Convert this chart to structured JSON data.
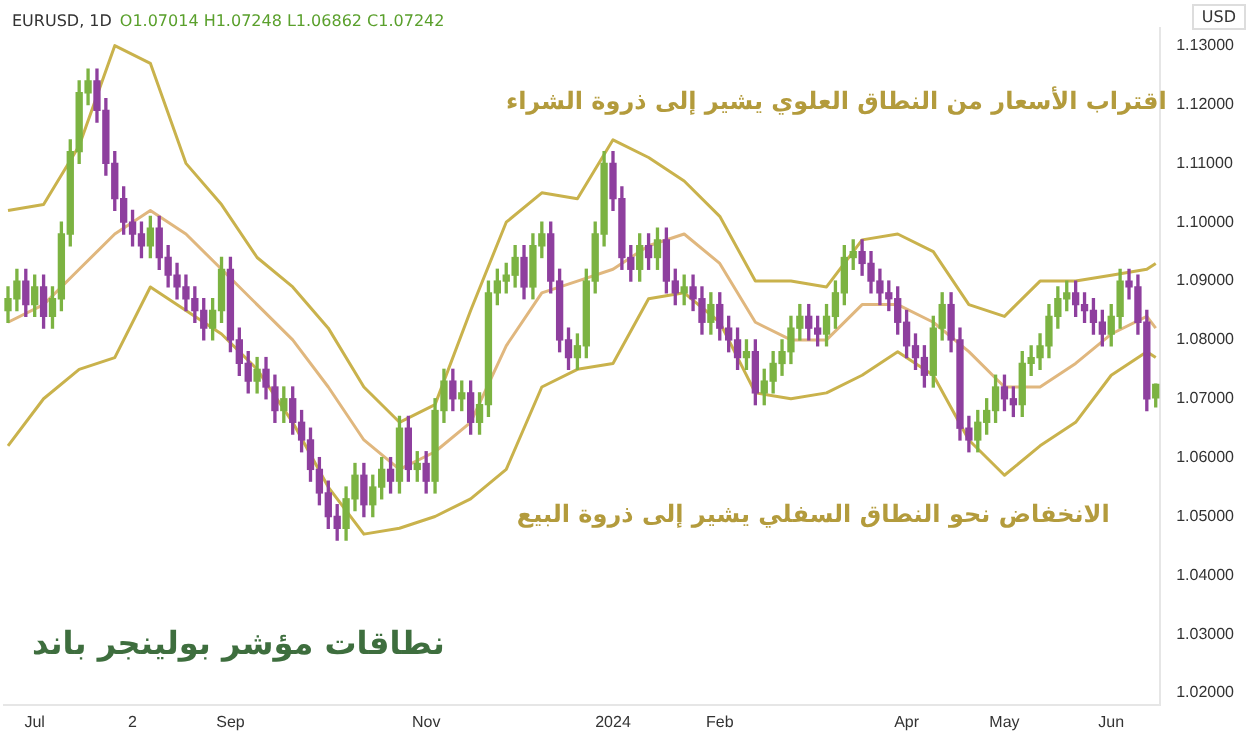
{
  "chart_data": {
    "type": "candlestick",
    "title": "نطاقات مؤشر بولينجر باند",
    "subtitle": "EURUSD, 1D",
    "ylabel": "USD",
    "annotations": [
      "O1.07014 H1.07248 L1.06862 C1.07242",
      "اقتراب الأسعار من النطاق العلوي يشير إلى ذروة الشراء",
      "الانخفاض نحو النطاق السفلي يشير إلى ذروة البيع"
    ],
    "categories": [
      null,
      null,
      null,
      "Jul",
      null,
      null,
      null,
      null,
      null,
      null,
      null,
      null,
      null,
      null,
      "2",
      null,
      null,
      null,
      null,
      null,
      null,
      null,
      null,
      null,
      null,
      "Sep",
      null,
      null,
      null,
      null,
      null,
      null,
      null,
      null,
      null,
      null,
      null,
      null,
      null,
      null,
      null,
      null,
      null,
      null,
      null,
      null,
      null,
      "Nov",
      null,
      null,
      null,
      null,
      null,
      null,
      null,
      null,
      null,
      null,
      null,
      null,
      null,
      null,
      null,
      null,
      null,
      null,
      null,
      null,
      "2024",
      null,
      null,
      null,
      null,
      null,
      null,
      null,
      null,
      null,
      null,
      null,
      "Feb",
      null,
      null,
      null,
      null,
      null,
      null,
      null,
      null,
      null,
      null,
      null,
      null,
      null,
      null,
      null,
      null,
      null,
      null,
      null,
      null,
      "Apr",
      null,
      null,
      null,
      null,
      null,
      null,
      null,
      null,
      null,
      null,
      "May",
      null,
      null,
      null,
      null,
      null,
      null,
      null,
      null,
      null,
      null,
      null,
      "Jun",
      null,
      null,
      null,
      null,
      null
    ],
    "series": [
      {
        "ohlc": [
          [
            1.085,
            1.089,
            1.083,
            1.087
          ],
          [
            1.087,
            1.092,
            1.085,
            1.09
          ],
          [
            1.09,
            1.092,
            1.084,
            1.086
          ],
          [
            1.086,
            1.091,
            1.084,
            1.089
          ],
          [
            1.089,
            1.091,
            1.082,
            1.084
          ],
          [
            1.084,
            1.089,
            1.082,
            1.087
          ],
          [
            1.087,
            1.1,
            1.085,
            1.098
          ],
          [
            1.098,
            1.114,
            1.096,
            1.112
          ],
          [
            1.112,
            1.124,
            1.11,
            1.122
          ],
          [
            1.122,
            1.126,
            1.12,
            1.124
          ],
          [
            1.124,
            1.126,
            1.117,
            1.119
          ],
          [
            1.119,
            1.121,
            1.108,
            1.11
          ],
          [
            1.11,
            1.112,
            1.102,
            1.104
          ],
          [
            1.104,
            1.106,
            1.098,
            1.1
          ],
          [
            1.1,
            1.102,
            1.096,
            1.098
          ],
          [
            1.098,
            1.1,
            1.094,
            1.096
          ],
          [
            1.096,
            1.101,
            1.094,
            1.099
          ],
          [
            1.099,
            1.101,
            1.092,
            1.094
          ],
          [
            1.094,
            1.096,
            1.089,
            1.091
          ],
          [
            1.091,
            1.093,
            1.087,
            1.089
          ],
          [
            1.089,
            1.091,
            1.085,
            1.087
          ],
          [
            1.087,
            1.089,
            1.083,
            1.085
          ],
          [
            1.085,
            1.087,
            1.08,
            1.082
          ],
          [
            1.082,
            1.087,
            1.08,
            1.085
          ],
          [
            1.085,
            1.094,
            1.083,
            1.092
          ],
          [
            1.092,
            1.094,
            1.078,
            1.08
          ],
          [
            1.08,
            1.082,
            1.074,
            1.076
          ],
          [
            1.076,
            1.078,
            1.071,
            1.073
          ],
          [
            1.073,
            1.077,
            1.071,
            1.075
          ],
          [
            1.075,
            1.077,
            1.07,
            1.072
          ],
          [
            1.072,
            1.074,
            1.066,
            1.068
          ],
          [
            1.068,
            1.072,
            1.066,
            1.07
          ],
          [
            1.07,
            1.072,
            1.064,
            1.066
          ],
          [
            1.066,
            1.068,
            1.061,
            1.063
          ],
          [
            1.063,
            1.065,
            1.056,
            1.058
          ],
          [
            1.058,
            1.06,
            1.052,
            1.054
          ],
          [
            1.054,
            1.056,
            1.048,
            1.05
          ],
          [
            1.05,
            1.052,
            1.046,
            1.048
          ],
          [
            1.048,
            1.055,
            1.046,
            1.053
          ],
          [
            1.053,
            1.059,
            1.051,
            1.057
          ],
          [
            1.057,
            1.059,
            1.05,
            1.052
          ],
          [
            1.052,
            1.057,
            1.05,
            1.055
          ],
          [
            1.055,
            1.06,
            1.053,
            1.058
          ],
          [
            1.058,
            1.06,
            1.054,
            1.056
          ],
          [
            1.056,
            1.067,
            1.054,
            1.065
          ],
          [
            1.065,
            1.067,
            1.056,
            1.058
          ],
          [
            1.058,
            1.061,
            1.056,
            1.059
          ],
          [
            1.059,
            1.061,
            1.054,
            1.056
          ],
          [
            1.056,
            1.07,
            1.054,
            1.068
          ],
          [
            1.068,
            1.075,
            1.066,
            1.073
          ],
          [
            1.073,
            1.075,
            1.068,
            1.07
          ],
          [
            1.07,
            1.073,
            1.068,
            1.071
          ],
          [
            1.071,
            1.073,
            1.064,
            1.066
          ],
          [
            1.066,
            1.071,
            1.064,
            1.069
          ],
          [
            1.069,
            1.09,
            1.067,
            1.088
          ],
          [
            1.088,
            1.092,
            1.086,
            1.09
          ],
          [
            1.09,
            1.093,
            1.088,
            1.091
          ],
          [
            1.091,
            1.096,
            1.089,
            1.094
          ],
          [
            1.094,
            1.096,
            1.087,
            1.089
          ],
          [
            1.089,
            1.098,
            1.087,
            1.096
          ],
          [
            1.096,
            1.1,
            1.094,
            1.098
          ],
          [
            1.098,
            1.1,
            1.088,
            1.09
          ],
          [
            1.09,
            1.092,
            1.078,
            1.08
          ],
          [
            1.08,
            1.082,
            1.075,
            1.077
          ],
          [
            1.077,
            1.081,
            1.075,
            1.079
          ],
          [
            1.079,
            1.092,
            1.077,
            1.09
          ],
          [
            1.09,
            1.1,
            1.088,
            1.098
          ],
          [
            1.098,
            1.112,
            1.096,
            1.11
          ],
          [
            1.11,
            1.112,
            1.102,
            1.104
          ],
          [
            1.104,
            1.106,
            1.092,
            1.094
          ],
          [
            1.094,
            1.096,
            1.09,
            1.092
          ],
          [
            1.092,
            1.098,
            1.09,
            1.096
          ],
          [
            1.096,
            1.098,
            1.092,
            1.094
          ],
          [
            1.094,
            1.099,
            1.092,
            1.097
          ],
          [
            1.097,
            1.099,
            1.088,
            1.09
          ],
          [
            1.09,
            1.092,
            1.086,
            1.088
          ],
          [
            1.088,
            1.091,
            1.086,
            1.089
          ],
          [
            1.089,
            1.091,
            1.085,
            1.087
          ],
          [
            1.087,
            1.089,
            1.081,
            1.083
          ],
          [
            1.083,
            1.088,
            1.081,
            1.086
          ],
          [
            1.086,
            1.088,
            1.08,
            1.082
          ],
          [
            1.082,
            1.084,
            1.078,
            1.08
          ],
          [
            1.08,
            1.082,
            1.075,
            1.077
          ],
          [
            1.077,
            1.08,
            1.075,
            1.078
          ],
          [
            1.078,
            1.08,
            1.069,
            1.071
          ],
          [
            1.071,
            1.075,
            1.069,
            1.073
          ],
          [
            1.073,
            1.078,
            1.071,
            1.076
          ],
          [
            1.076,
            1.08,
            1.074,
            1.078
          ],
          [
            1.078,
            1.084,
            1.076,
            1.082
          ],
          [
            1.082,
            1.086,
            1.08,
            1.084
          ],
          [
            1.084,
            1.086,
            1.08,
            1.082
          ],
          [
            1.082,
            1.084,
            1.079,
            1.081
          ],
          [
            1.081,
            1.086,
            1.079,
            1.084
          ],
          [
            1.084,
            1.09,
            1.082,
            1.088
          ],
          [
            1.088,
            1.096,
            1.086,
            1.094
          ],
          [
            1.094,
            1.097,
            1.092,
            1.095
          ],
          [
            1.095,
            1.097,
            1.091,
            1.093
          ],
          [
            1.093,
            1.095,
            1.088,
            1.09
          ],
          [
            1.09,
            1.092,
            1.086,
            1.088
          ],
          [
            1.088,
            1.09,
            1.085,
            1.087
          ],
          [
            1.087,
            1.089,
            1.081,
            1.083
          ],
          [
            1.083,
            1.085,
            1.077,
            1.079
          ],
          [
            1.079,
            1.081,
            1.075,
            1.077
          ],
          [
            1.077,
            1.079,
            1.072,
            1.074
          ],
          [
            1.074,
            1.084,
            1.072,
            1.082
          ],
          [
            1.082,
            1.088,
            1.08,
            1.086
          ],
          [
            1.086,
            1.088,
            1.078,
            1.08
          ],
          [
            1.08,
            1.082,
            1.063,
            1.065
          ],
          [
            1.065,
            1.067,
            1.061,
            1.063
          ],
          [
            1.063,
            1.068,
            1.061,
            1.066
          ],
          [
            1.066,
            1.07,
            1.064,
            1.068
          ],
          [
            1.068,
            1.074,
            1.066,
            1.072
          ],
          [
            1.072,
            1.074,
            1.068,
            1.07
          ],
          [
            1.07,
            1.072,
            1.067,
            1.069
          ],
          [
            1.069,
            1.078,
            1.067,
            1.076
          ],
          [
            1.076,
            1.079,
            1.074,
            1.077
          ],
          [
            1.077,
            1.081,
            1.075,
            1.079
          ],
          [
            1.079,
            1.086,
            1.077,
            1.084
          ],
          [
            1.084,
            1.089,
            1.082,
            1.087
          ],
          [
            1.087,
            1.09,
            1.085,
            1.088
          ],
          [
            1.088,
            1.09,
            1.084,
            1.086
          ],
          [
            1.086,
            1.088,
            1.083,
            1.085
          ],
          [
            1.085,
            1.087,
            1.081,
            1.083
          ],
          [
            1.083,
            1.085,
            1.079,
            1.081
          ],
          [
            1.081,
            1.086,
            1.079,
            1.084
          ],
          [
            1.084,
            1.092,
            1.082,
            1.09
          ],
          [
            1.09,
            1.092,
            1.087,
            1.089
          ],
          [
            1.089,
            1.091,
            1.081,
            1.083
          ],
          [
            1.083,
            1.085,
            1.068,
            1.07
          ],
          [
            1.07014,
            1.07248,
            1.06862,
            1.07242
          ]
        ],
        "colors": [
          "#7cb342",
          "#7cb342",
          "#8e3f9e",
          "#7cb342",
          "#8e3f9e",
          "#7cb342",
          "#7cb342",
          "#7cb342",
          "#7cb342",
          "#7cb342",
          "#8e3f9e",
          "#8e3f9e",
          "#8e3f9e",
          "#8e3f9e",
          "#8e3f9e",
          "#8e3f9e",
          "#7cb342",
          "#8e3f9e",
          "#8e3f9e",
          "#8e3f9e",
          "#8e3f9e",
          "#8e3f9e",
          "#8e3f9e",
          "#7cb342",
          "#7cb342",
          "#8e3f9e",
          "#8e3f9e",
          "#8e3f9e",
          "#7cb342",
          "#8e3f9e",
          "#8e3f9e",
          "#7cb342",
          "#8e3f9e",
          "#8e3f9e",
          "#8e3f9e",
          "#8e3f9e",
          "#8e3f9e",
          "#8e3f9e",
          "#7cb342",
          "#7cb342",
          "#8e3f9e",
          "#7cb342",
          "#7cb342",
          "#8e3f9e",
          "#7cb342",
          "#8e3f9e",
          "#7cb342",
          "#8e3f9e",
          "#7cb342",
          "#7cb342",
          "#8e3f9e",
          "#7cb342",
          "#8e3f9e",
          "#7cb342",
          "#7cb342",
          "#7cb342",
          "#7cb342",
          "#7cb342",
          "#8e3f9e",
          "#7cb342",
          "#7cb342",
          "#8e3f9e",
          "#8e3f9e",
          "#8e3f9e",
          "#7cb342",
          "#7cb342",
          "#7cb342",
          "#7cb342",
          "#8e3f9e",
          "#8e3f9e",
          "#8e3f9e",
          "#7cb342",
          "#8e3f9e",
          "#7cb342",
          "#8e3f9e",
          "#8e3f9e",
          "#7cb342",
          "#8e3f9e",
          "#8e3f9e",
          "#7cb342",
          "#8e3f9e",
          "#8e3f9e",
          "#8e3f9e",
          "#7cb342",
          "#8e3f9e",
          "#7cb342",
          "#7cb342",
          "#7cb342",
          "#7cb342",
          "#7cb342",
          "#8e3f9e",
          "#8e3f9e",
          "#7cb342",
          "#7cb342",
          "#7cb342",
          "#7cb342",
          "#8e3f9e",
          "#8e3f9e",
          "#8e3f9e",
          "#8e3f9e",
          "#8e3f9e",
          "#8e3f9e",
          "#8e3f9e",
          "#8e3f9e",
          "#7cb342",
          "#7cb342",
          "#8e3f9e",
          "#8e3f9e",
          "#8e3f9e",
          "#7cb342",
          "#7cb342",
          "#7cb342",
          "#8e3f9e",
          "#8e3f9e",
          "#7cb342",
          "#7cb342",
          "#7cb342",
          "#7cb342",
          "#7cb342",
          "#7cb342",
          "#8e3f9e",
          "#8e3f9e",
          "#8e3f9e",
          "#8e3f9e",
          "#7cb342",
          "#7cb342",
          "#8e3f9e",
          "#8e3f9e",
          "#8e3f9e",
          "#7cb342"
        ]
      },
      {
        "type": "line",
        "color": "#c9b24c",
        "values": [
          1.102,
          null,
          null,
          null,
          1.103,
          null,
          null,
          null,
          1.113,
          null,
          null,
          null,
          1.13,
          null,
          null,
          null,
          1.127,
          null,
          null,
          null,
          1.11,
          null,
          null,
          null,
          1.103,
          null,
          null,
          null,
          1.094,
          null,
          null,
          null,
          1.089,
          null,
          null,
          null,
          1.082,
          null,
          null,
          null,
          1.072,
          null,
          null,
          null,
          1.066,
          null,
          null,
          null,
          1.069,
          null,
          null,
          null,
          1.085,
          null,
          null,
          null,
          1.1,
          null,
          null,
          null,
          1.105,
          null,
          null,
          null,
          1.104,
          null,
          null,
          null,
          1.114,
          null,
          null,
          null,
          1.111,
          null,
          null,
          null,
          1.107,
          null,
          null,
          null,
          1.101,
          null,
          null,
          null,
          1.09,
          null,
          null,
          null,
          1.09,
          null,
          null,
          null,
          1.089,
          null,
          null,
          null,
          1.097,
          null,
          null,
          null,
          1.098,
          null,
          null,
          null,
          1.095,
          null,
          null,
          null,
          1.086,
          null,
          null,
          null,
          1.084,
          null,
          null,
          null,
          1.09,
          null,
          null,
          null,
          1.09,
          null,
          null,
          null,
          1.091,
          null,
          null,
          null,
          1.092,
          1.093
        ]
      },
      {
        "type": "line",
        "color": "#e0b77e",
        "values": [
          1.083,
          null,
          null,
          null,
          1.086,
          null,
          null,
          null,
          1.092,
          null,
          null,
          null,
          1.098,
          null,
          null,
          null,
          1.102,
          null,
          null,
          null,
          1.098,
          null,
          null,
          null,
          1.092,
          null,
          null,
          null,
          1.086,
          null,
          null,
          null,
          1.08,
          null,
          null,
          null,
          1.072,
          null,
          null,
          null,
          1.063,
          null,
          null,
          null,
          1.058,
          null,
          null,
          null,
          1.061,
          null,
          null,
          null,
          1.066,
          null,
          null,
          null,
          1.079,
          null,
          null,
          null,
          1.088,
          null,
          null,
          null,
          1.09,
          null,
          null,
          null,
          1.092,
          null,
          null,
          null,
          1.096,
          null,
          null,
          null,
          1.098,
          null,
          null,
          null,
          1.093,
          null,
          null,
          null,
          1.083,
          null,
          null,
          null,
          1.08,
          null,
          null,
          null,
          1.08,
          null,
          null,
          null,
          1.086,
          null,
          null,
          null,
          1.086,
          null,
          null,
          null,
          1.083,
          null,
          null,
          null,
          1.078,
          null,
          null,
          null,
          1.072,
          null,
          null,
          null,
          1.072,
          null,
          null,
          null,
          1.076,
          null,
          null,
          null,
          1.081,
          null,
          null,
          null,
          1.084,
          1.082
        ]
      },
      {
        "type": "line",
        "color": "#c9b24c",
        "values": [
          1.062,
          null,
          null,
          null,
          1.07,
          null,
          null,
          null,
          1.075,
          null,
          null,
          null,
          1.077,
          null,
          null,
          null,
          1.089,
          null,
          null,
          null,
          1.085,
          null,
          null,
          null,
          1.081,
          null,
          null,
          null,
          1.075,
          null,
          null,
          null,
          1.066,
          null,
          null,
          null,
          1.055,
          null,
          null,
          null,
          1.047,
          null,
          null,
          null,
          1.048,
          null,
          null,
          null,
          1.05,
          null,
          null,
          null,
          1.053,
          null,
          null,
          null,
          1.058,
          null,
          null,
          null,
          1.072,
          null,
          null,
          null,
          1.075,
          null,
          null,
          null,
          1.076,
          null,
          null,
          null,
          1.087,
          null,
          null,
          null,
          1.088,
          null,
          null,
          null,
          1.083,
          null,
          null,
          null,
          1.071,
          null,
          null,
          null,
          1.07,
          null,
          null,
          null,
          1.071,
          null,
          null,
          null,
          1.074,
          null,
          null,
          null,
          1.078,
          null,
          null,
          null,
          1.074,
          null,
          null,
          null,
          1.063,
          null,
          null,
          null,
          1.057,
          null,
          null,
          null,
          1.062,
          null,
          null,
          null,
          1.066,
          null,
          null,
          null,
          1.074,
          null,
          null,
          null,
          1.078,
          1.077
        ]
      }
    ],
    "ylim": [
      1.018,
      1.133
    ],
    "yticks": [
      {
        "value": 1.02,
        "label": "1.02000"
      },
      {
        "value": 1.03,
        "label": "1.03000"
      },
      {
        "value": 1.04,
        "label": "1.04000"
      },
      {
        "value": 1.05,
        "label": "1.05000"
      },
      {
        "value": 1.06,
        "label": "1.06000"
      },
      {
        "value": 1.07,
        "label": "1.07000"
      },
      {
        "value": 1.08,
        "label": "1.08000"
      },
      {
        "value": 1.09,
        "label": "1.09000"
      },
      {
        "value": 1.1,
        "label": "1.10000"
      },
      {
        "value": 1.11,
        "label": "1.11000"
      },
      {
        "value": 1.12,
        "label": "1.12000"
      },
      {
        "value": 1.13,
        "label": "1.13000"
      }
    ],
    "grid": false,
    "legend": false,
    "marker": "none"
  }
}
